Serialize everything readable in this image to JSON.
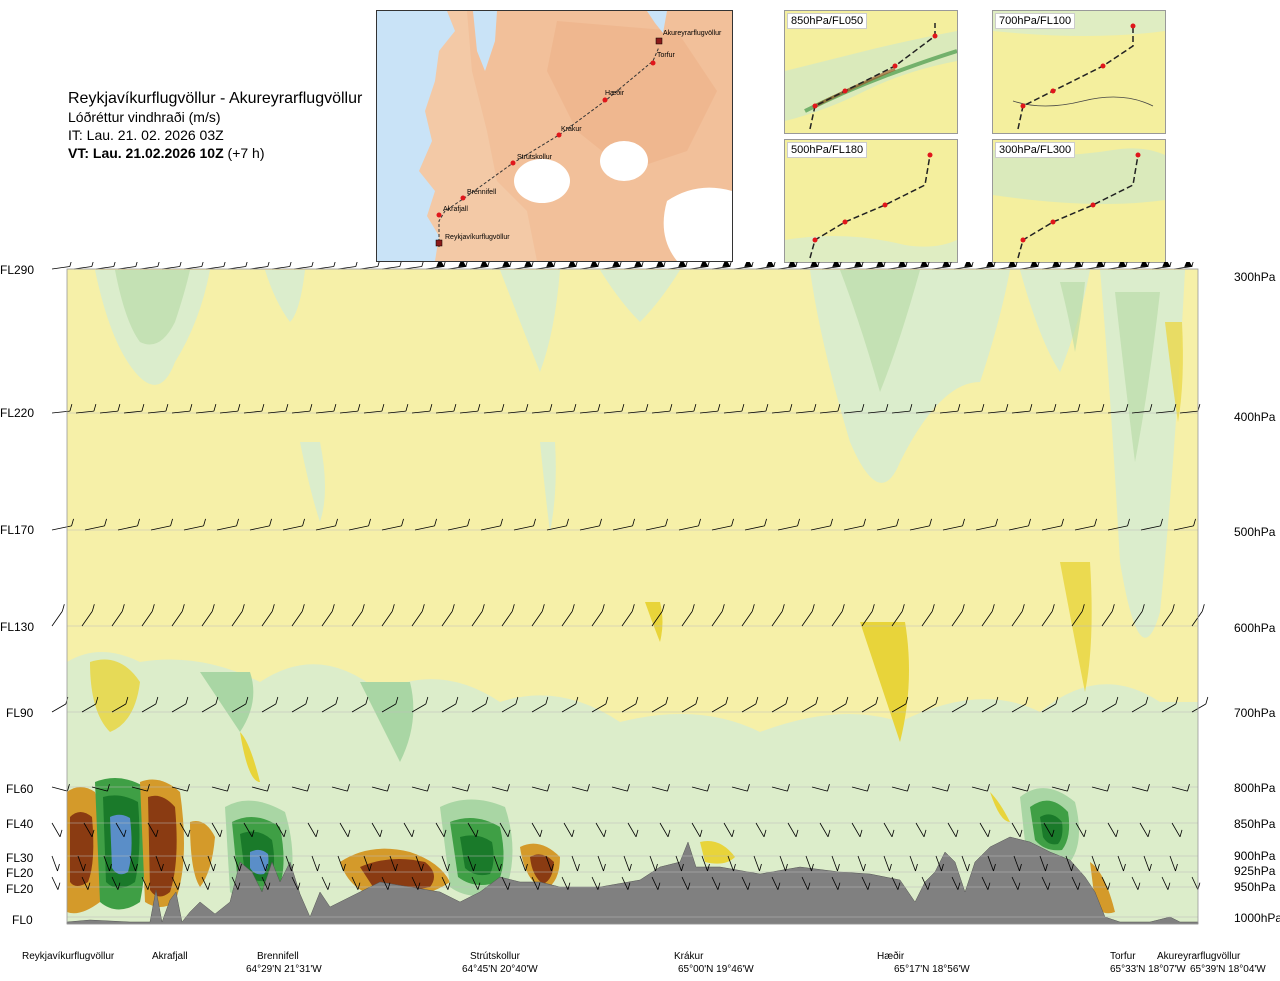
{
  "title": {
    "main": "Reykjavíkurflugvöllur - Akureyrarflugvöllur",
    "subtitle": "Lóðréttur vindhraði (m/s)",
    "it": "IT: Lau. 21. 02. 2026 03Z",
    "vt": "VT: Lau. 21.02.2026 10Z",
    "vt_offset": "(+7 h)"
  },
  "route_map": {
    "places": [
      "Akureyrarflugvöllur",
      "Torfur",
      "Hæðir",
      "Krákur",
      "Strútskollur",
      "Brennifell",
      "Akrafjall",
      "Reykjavíkurflugvöllur"
    ]
  },
  "mini_maps": [
    {
      "label": "850hPa/FL050"
    },
    {
      "label": "700hPa/FL100"
    },
    {
      "label": "500hPa/FL180"
    },
    {
      "label": "300hPa/FL300"
    }
  ],
  "levels_left": [
    "FL290",
    "FL220",
    "FL170",
    "FL130",
    "FL90",
    "FL60",
    "FL40",
    "FL30",
    "FL20",
    "FL20",
    "FL0"
  ],
  "levels_right": [
    "300hPa",
    "400hPa",
    "500hPa",
    "600hPa",
    "700hPa",
    "800hPa",
    "850hPa",
    "900hPa",
    "925hPa",
    "950hPa",
    "1000hPa"
  ],
  "waypoints": [
    {
      "name": "Reykjavíkurflugvöllur",
      "coord": ""
    },
    {
      "name": "Akrafjall",
      "coord": ""
    },
    {
      "name": "Brennifell",
      "coord": "64°29'N 21°31'W"
    },
    {
      "name": "Strútskollur",
      "coord": "64°45'N 20°40'W"
    },
    {
      "name": "Krákur",
      "coord": "65°00'N 19°46'W"
    },
    {
      "name": "Hæðir",
      "coord": "65°17'N 18°56'W"
    },
    {
      "name": "Torfur",
      "coord": "65°33'N 18°07'W"
    },
    {
      "name": "Akureyrarflugvöllur",
      "coord": "65°39'N 18°04'W"
    }
  ],
  "colors": {
    "sea": "#c9e3f7",
    "land": "#f4c9a8",
    "pale_yellow": "#f6f0a8",
    "yellow": "#e8d43a",
    "orange": "#d49a2a",
    "brown": "#8a3b12",
    "pale_green": "#d6ecd2",
    "mid_green": "#a9d6a4",
    "green": "#3f9f45",
    "dark_green": "#1a7a2a",
    "blue": "#5a8ec8",
    "terrain": "#808080",
    "route_point": "#e0161b"
  }
}
